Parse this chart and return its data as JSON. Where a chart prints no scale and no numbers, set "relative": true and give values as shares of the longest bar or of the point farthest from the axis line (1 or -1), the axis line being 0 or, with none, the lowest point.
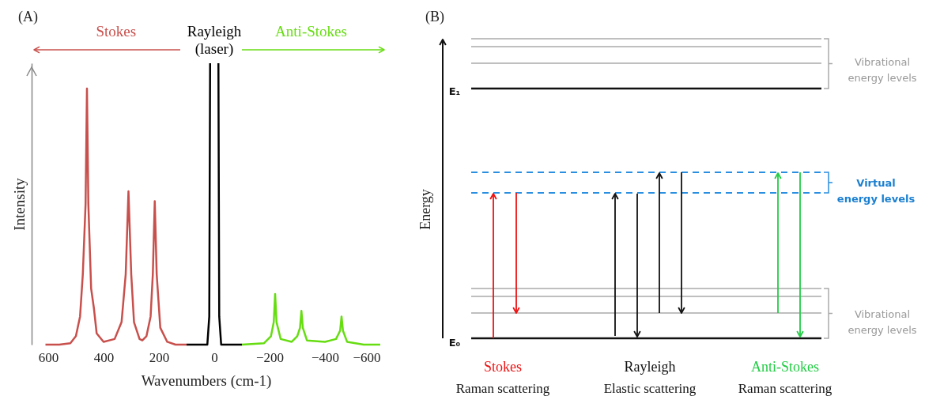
{
  "chart_data": [
    {
      "type": "line",
      "title": "(A)",
      "xlabel": "Wavenumbers (cm-1)",
      "ylabel": "Intensity",
      "relative": true,
      "xlim": [
        660,
        -600
      ],
      "xticks": [
        600,
        400,
        200,
        0,
        -200,
        -400,
        -600
      ],
      "series": [
        {
          "name": "Stokes",
          "color": "#c8504c",
          "x": [
            610,
            560,
            520,
            500,
            485,
            475,
            465,
            460,
            455,
            445,
            435,
            425,
            400,
            360,
            335,
            320,
            310,
            300,
            290,
            270,
            260,
            245,
            230,
            222,
            215,
            208,
            195,
            170,
            140,
            100
          ],
          "values": [
            0,
            0,
            0.005,
            0.03,
            0.1,
            0.25,
            0.5,
            0.91,
            0.5,
            0.2,
            0.13,
            0.04,
            0.01,
            0.02,
            0.08,
            0.25,
            0.545,
            0.25,
            0.08,
            0.02,
            0.015,
            0.03,
            0.1,
            0.25,
            0.51,
            0.25,
            0.06,
            0.01,
            0,
            0
          ]
        },
        {
          "name": "Rayleigh (laser)",
          "color": "#000000",
          "x": [
            100,
            25,
            18,
            15,
            12,
            -12,
            -15,
            -18,
            -25,
            -100
          ],
          "values": [
            0,
            0,
            0.1,
            1,
            null,
            null,
            1,
            0.1,
            0,
            0
          ]
        },
        {
          "name": "Anti-Stokes",
          "color": "#66dd11",
          "x": [
            -100,
            -180,
            -205,
            -215,
            -220,
            -225,
            -240,
            -280,
            -300,
            -310,
            -315,
            -320,
            -335,
            -400,
            -440,
            -455,
            -460,
            -465,
            -480,
            -540,
            -600
          ],
          "values": [
            0,
            0.005,
            0.03,
            0.08,
            0.18,
            0.08,
            0.02,
            0.01,
            0.03,
            0.06,
            0.12,
            0.06,
            0.015,
            0.01,
            0.02,
            0.05,
            0.1,
            0.05,
            0.01,
            0,
            0
          ]
        }
      ]
    },
    {
      "type": "other",
      "title": "(B)",
      "ylabel": "Energy",
      "annotations": [
        "E₁",
        "E₀",
        "Vibrational energy levels",
        "Vibrational energy levels",
        "Virtual energy levels",
        "Stokes",
        "Raman scattering",
        "Rayleigh",
        "Elastic scattering",
        "Anti-Stokes",
        "Raman scattering"
      ]
    }
  ]
}
